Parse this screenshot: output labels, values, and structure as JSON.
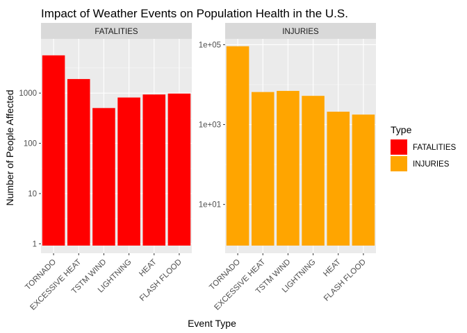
{
  "chart_data": {
    "type": "bar",
    "title": "Impact of Weather Events on Population Health in the U.S.",
    "xlabel": "Event Type",
    "ylabel": "Number of People Affected",
    "categories": [
      "TORNADO",
      "EXCESSIVE HEAT",
      "TSTM WIND",
      "LIGHTNING",
      "HEAT",
      "FLASH FLOOD"
    ],
    "y_scale": "log",
    "legend": {
      "title": "Type",
      "placement": "right",
      "entries": [
        {
          "label": "FATALITIES",
          "color": "#FF0000"
        },
        {
          "label": "INJURIES",
          "color": "#FFA500"
        }
      ]
    },
    "panels": [
      {
        "strip_label": "FATALITIES",
        "color": "#FF0000",
        "values": [
          5633,
          1903,
          504,
          816,
          937,
          978
        ],
        "ylim": [
          0.65,
          12000
        ],
        "y_ticks": [
          1,
          10,
          100,
          1000
        ],
        "y_tick_labels": [
          "1",
          "10",
          "100",
          "1000"
        ]
      },
      {
        "strip_label": "INJURIES",
        "color": "#FFA500",
        "values": [
          91346,
          6525,
          6957,
          5230,
          2100,
          1777
        ],
        "ylim": [
          0.6,
          140000
        ],
        "y_ticks": [
          10,
          1000,
          100000
        ],
        "y_tick_labels": [
          "1e+01",
          "1e+03",
          "1e+05"
        ]
      }
    ]
  }
}
